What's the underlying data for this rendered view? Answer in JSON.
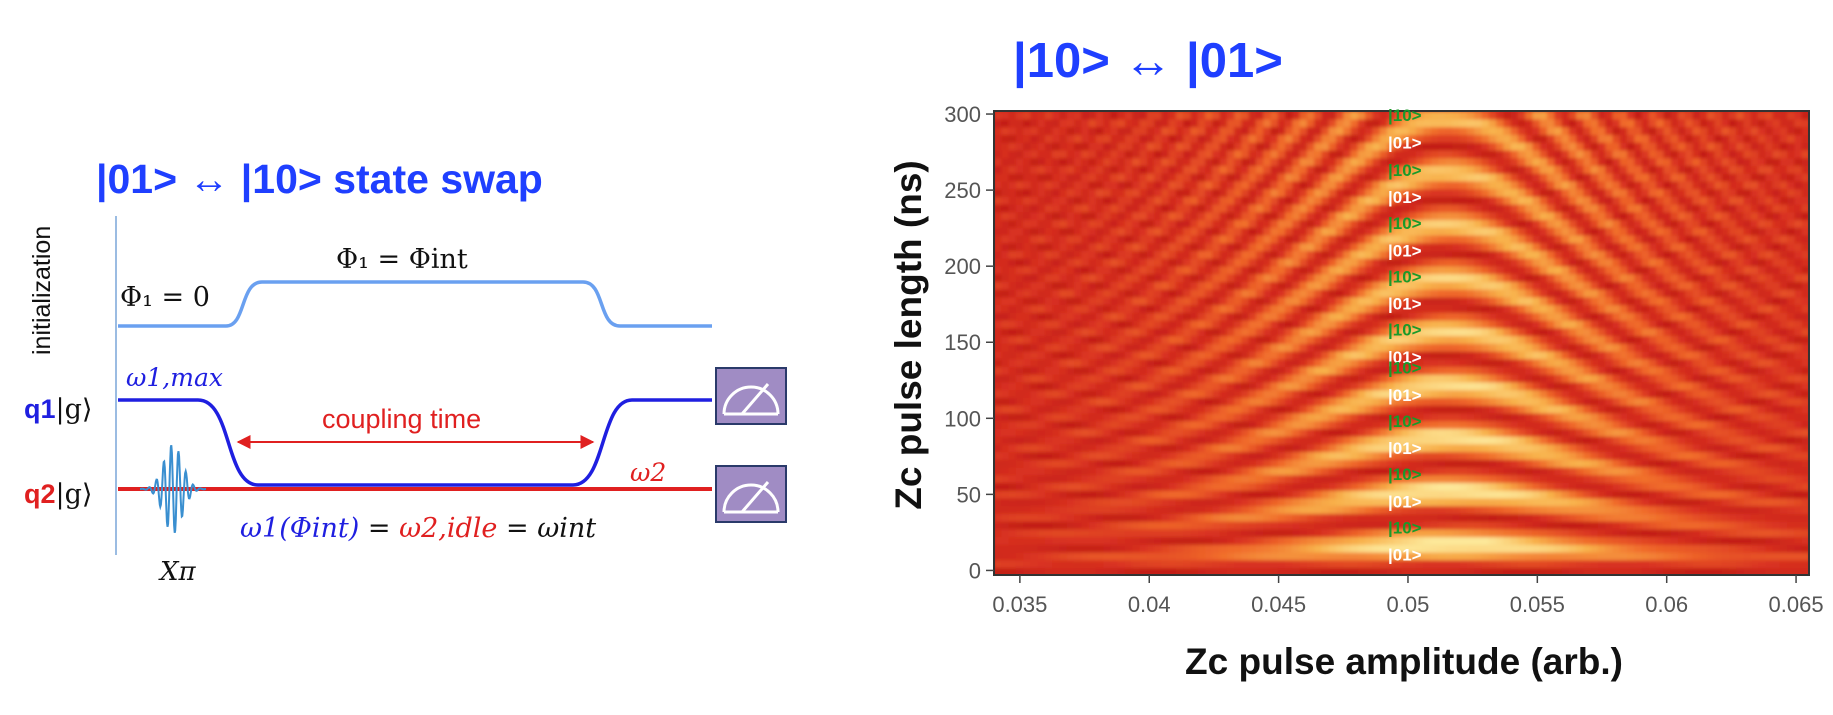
{
  "left_panel": {
    "title": "|01> ↔ |10> state swap",
    "initialization_label": "initialization",
    "flux_start_label": "Φ₁ = 0",
    "flux_int_label": "Φ₁ = Φint",
    "q1": {
      "name": "q1",
      "state": "|g⟩",
      "freq_label": "ω1,max"
    },
    "q2": {
      "name": "q2",
      "state": "|g⟩",
      "freq_label": "ω2"
    },
    "coupling_label": "coupling time",
    "resonance": {
      "part1": "ω1(Φint)",
      "eq1": " = ",
      "part2": "ω2,idle",
      "eq2": " = ",
      "part3": "ωint"
    },
    "pulse_label": "Xπ",
    "colors": {
      "q1": "#1f1fe0",
      "q2": "#e02020",
      "flux": "#6aa0f0",
      "title": "#1f3fff",
      "meter": "#a08cc4"
    },
    "icons": [
      "readout-meter-icon",
      "readout-meter-icon"
    ]
  },
  "right_panel": {
    "title": "|10> ↔ |01>",
    "chart_data": {
      "type": "heatmap",
      "xlabel": "Zc pulse amplitude (arb.)",
      "ylabel": "Zc pulse length (ns)",
      "xlim": [
        0.034,
        0.0655
      ],
      "ylim": [
        -3,
        302
      ],
      "x_ticks": [
        0.035,
        0.04,
        0.045,
        0.05,
        0.055,
        0.06,
        0.065
      ],
      "x_tick_labels": [
        "0.035",
        "0.04",
        "0.045",
        "0.05",
        "0.055",
        "0.06",
        "0.065"
      ],
      "y_ticks": [
        0,
        50,
        100,
        150,
        200,
        250,
        300
      ],
      "y_tick_labels": [
        "0",
        "50",
        "100",
        "150",
        "200",
        "250",
        "300"
      ],
      "resonance_amplitude": 0.0515,
      "swap_period_ns": 35,
      "colormap": [
        "#b01010",
        "#d83020",
        "#f06a2a",
        "#f8b04a",
        "#fde89a"
      ],
      "state_annotations": [
        {
          "y": 300,
          "text": "|10>",
          "color": "#1a9a2a"
        },
        {
          "y": 282,
          "text": "|01>",
          "color": "#ffffff"
        },
        {
          "y": 264,
          "text": "|10>",
          "color": "#1a9a2a"
        },
        {
          "y": 246,
          "text": "|01>",
          "color": "#ffffff"
        },
        {
          "y": 229,
          "text": "|10>",
          "color": "#1a9a2a"
        },
        {
          "y": 211,
          "text": "|01>",
          "color": "#ffffff"
        },
        {
          "y": 194,
          "text": "|10>",
          "color": "#1a9a2a"
        },
        {
          "y": 176,
          "text": "|01>",
          "color": "#ffffff"
        },
        {
          "y": 159,
          "text": "|10>",
          "color": "#1a9a2a"
        },
        {
          "y": 141,
          "text": "|01>",
          "color": "#ffffff"
        },
        {
          "y": 134,
          "text": "|10>",
          "color": "#1a9a2a"
        },
        {
          "y": 116,
          "text": "|01>",
          "color": "#ffffff"
        },
        {
          "y": 99,
          "text": "|10>",
          "color": "#1a9a2a"
        },
        {
          "y": 81,
          "text": "|01>",
          "color": "#ffffff"
        },
        {
          "y": 64,
          "text": "|10>",
          "color": "#1a9a2a"
        },
        {
          "y": 46,
          "text": "|01>",
          "color": "#ffffff"
        },
        {
          "y": 29,
          "text": "|10>",
          "color": "#1a9a2a"
        },
        {
          "y": 11,
          "text": "|01>",
          "color": "#ffffff"
        }
      ]
    }
  }
}
